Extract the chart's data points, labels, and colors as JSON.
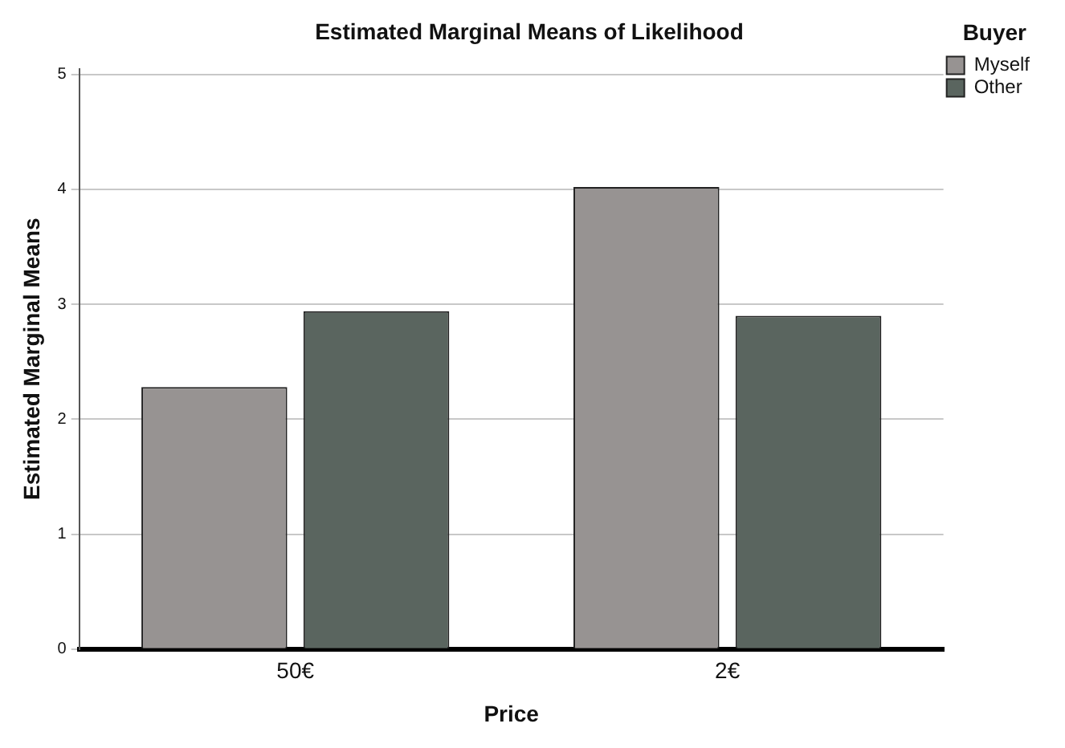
{
  "chart_data": {
    "type": "bar",
    "title": "Estimated Marginal Means of Likelihood",
    "xlabel": "Price",
    "ylabel": "Estimated Marginal Means",
    "legend_title": "Buyer",
    "categories": [
      "50€",
      "2€"
    ],
    "series": [
      {
        "name": "Myself",
        "color": "#979392",
        "values": [
          2.28,
          4.02
        ]
      },
      {
        "name": "Other",
        "color": "#5a655f",
        "values": [
          2.94,
          2.9
        ]
      }
    ],
    "ylim": [
      0,
      5.05
    ],
    "yticks": [
      0,
      1,
      2,
      3,
      4,
      5
    ],
    "grid": "y",
    "legend": "top right"
  }
}
